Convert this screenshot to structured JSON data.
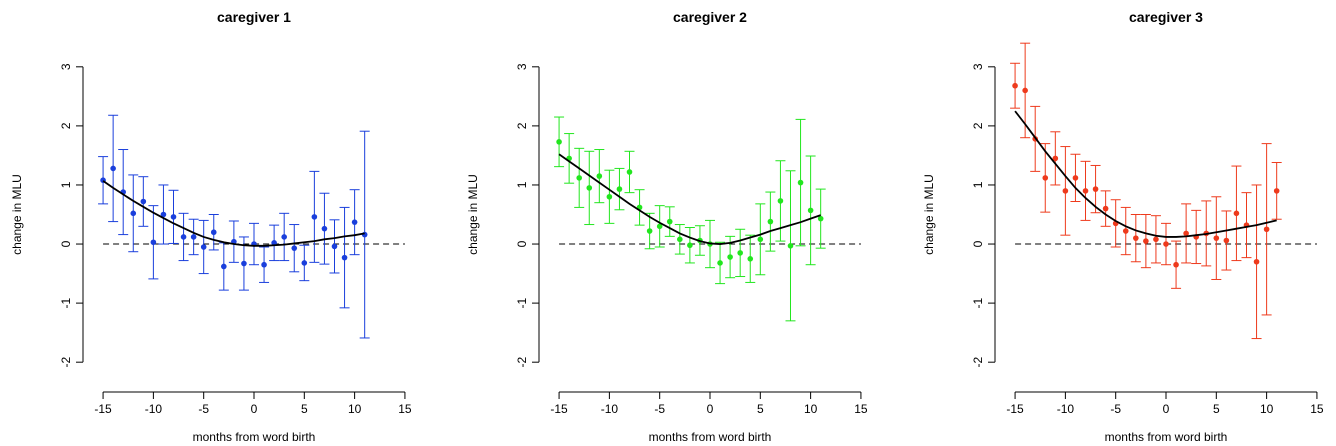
{
  "chart_data": [
    {
      "type": "scatter",
      "title": "caregiver  1",
      "xlabel": "months from word birth",
      "ylabel": "change in MLU",
      "color": "#1a3fdc",
      "x": [
        -15,
        -14,
        -13,
        -12,
        -11,
        -10,
        -9,
        -8,
        -7,
        -6,
        -5,
        -4,
        -3,
        -2,
        -1,
        0,
        1,
        2,
        3,
        4,
        5,
        6,
        7,
        8,
        9,
        10,
        11
      ],
      "values": [
        1.08,
        1.28,
        0.88,
        0.52,
        0.72,
        0.03,
        0.5,
        0.46,
        0.12,
        0.12,
        -0.05,
        0.2,
        -0.38,
        0.04,
        -0.33,
        0.0,
        -0.35,
        0.02,
        0.12,
        -0.07,
        -0.32,
        0.46,
        0.26,
        -0.04,
        -0.23,
        0.37,
        0.16
      ],
      "errors": [
        0.4,
        0.9,
        0.72,
        0.65,
        0.42,
        0.62,
        0.5,
        0.45,
        0.4,
        0.3,
        0.45,
        0.3,
        0.4,
        0.35,
        0.45,
        0.35,
        0.3,
        0.3,
        0.4,
        0.4,
        0.3,
        0.77,
        0.6,
        0.45,
        0.85,
        0.55,
        1.75
      ],
      "fit": [
        1.07,
        0.95,
        0.84,
        0.73,
        0.63,
        0.53,
        0.44,
        0.35,
        0.27,
        0.19,
        0.12,
        0.07,
        0.03,
        0.0,
        -0.02,
        -0.03,
        -0.03,
        -0.02,
        -0.01,
        0.01,
        0.03,
        0.05,
        0.08,
        0.1,
        0.13,
        0.15,
        0.18
      ],
      "reference_line": 0,
      "xlim": [
        -16.2,
        16.2
      ],
      "xticks": [
        -15,
        -10,
        -5,
        0,
        5,
        10,
        15
      ],
      "ylim": [
        -2.2,
        3.2
      ],
      "yticks": [
        -2,
        -1,
        0,
        1,
        2,
        3
      ]
    },
    {
      "type": "scatter",
      "title": "caregiver  2",
      "xlabel": "months from word birth",
      "ylabel": "change in MLU",
      "color": "#22e61e",
      "x": [
        -15,
        -14,
        -13,
        -12,
        -11,
        -10,
        -9,
        -8,
        -7,
        -6,
        -5,
        -4,
        -3,
        -2,
        -1,
        0,
        1,
        2,
        3,
        4,
        5,
        6,
        7,
        8,
        9,
        10,
        11
      ],
      "values": [
        1.73,
        1.45,
        1.12,
        0.95,
        1.15,
        0.8,
        0.93,
        1.22,
        0.62,
        0.22,
        0.3,
        0.38,
        0.08,
        -0.02,
        0.06,
        0.0,
        -0.32,
        -0.22,
        -0.15,
        -0.25,
        0.08,
        0.38,
        0.73,
        -0.03,
        1.04,
        0.57,
        0.43
      ],
      "errors": [
        0.42,
        0.42,
        0.5,
        0.62,
        0.45,
        0.45,
        0.35,
        0.35,
        0.3,
        0.3,
        0.35,
        0.25,
        0.25,
        0.3,
        0.25,
        0.4,
        0.35,
        0.35,
        0.4,
        0.4,
        0.6,
        0.5,
        0.68,
        1.27,
        1.07,
        0.92,
        0.5
      ],
      "fit": [
        1.52,
        1.4,
        1.28,
        1.16,
        1.04,
        0.92,
        0.8,
        0.68,
        0.57,
        0.46,
        0.36,
        0.27,
        0.18,
        0.11,
        0.05,
        0.01,
        0.0,
        0.02,
        0.06,
        0.11,
        0.16,
        0.22,
        0.27,
        0.32,
        0.37,
        0.43,
        0.49
      ],
      "reference_line": 0,
      "xlim": [
        -16.2,
        16.2
      ],
      "xticks": [
        -15,
        -10,
        -5,
        0,
        5,
        10,
        15
      ],
      "ylim": [
        -2.2,
        3.2
      ],
      "yticks": [
        -2,
        -1,
        0,
        1,
        2,
        3
      ]
    },
    {
      "type": "scatter",
      "title": "caregiver  3",
      "xlabel": "months from word birth",
      "ylabel": "change in MLU",
      "color": "#ee3a1c",
      "x": [
        -15,
        -14,
        -13,
        -12,
        -11,
        -10,
        -9,
        -8,
        -7,
        -6,
        -5,
        -4,
        -3,
        -2,
        -1,
        0,
        1,
        2,
        3,
        4,
        5,
        6,
        7,
        8,
        9,
        10,
        11
      ],
      "values": [
        2.68,
        2.6,
        1.78,
        1.12,
        1.45,
        0.9,
        1.12,
        0.9,
        0.93,
        0.6,
        0.35,
        0.22,
        0.1,
        0.05,
        0.08,
        0.0,
        -0.35,
        0.18,
        0.12,
        0.18,
        0.1,
        0.06,
        0.52,
        0.32,
        -0.3,
        0.25,
        0.9
      ],
      "errors": [
        0.38,
        0.8,
        0.55,
        0.58,
        0.45,
        0.75,
        0.4,
        0.5,
        0.4,
        0.3,
        0.4,
        0.4,
        0.4,
        0.45,
        0.4,
        0.35,
        0.4,
        0.5,
        0.45,
        0.55,
        0.7,
        0.5,
        0.8,
        0.55,
        1.3,
        1.45,
        0.48
      ],
      "fit": [
        2.25,
        2.03,
        1.8,
        1.57,
        1.36,
        1.15,
        0.95,
        0.78,
        0.63,
        0.5,
        0.39,
        0.3,
        0.23,
        0.18,
        0.14,
        0.12,
        0.12,
        0.13,
        0.15,
        0.17,
        0.2,
        0.23,
        0.26,
        0.29,
        0.32,
        0.36,
        0.4
      ],
      "reference_line": 0,
      "xlim": [
        -16.2,
        16.2
      ],
      "xticks": [
        -15,
        -10,
        -5,
        0,
        5,
        10,
        15
      ],
      "ylim": [
        -2.2,
        3.2
      ],
      "yticks": [
        -2,
        -1,
        0,
        1,
        2,
        3
      ]
    }
  ]
}
